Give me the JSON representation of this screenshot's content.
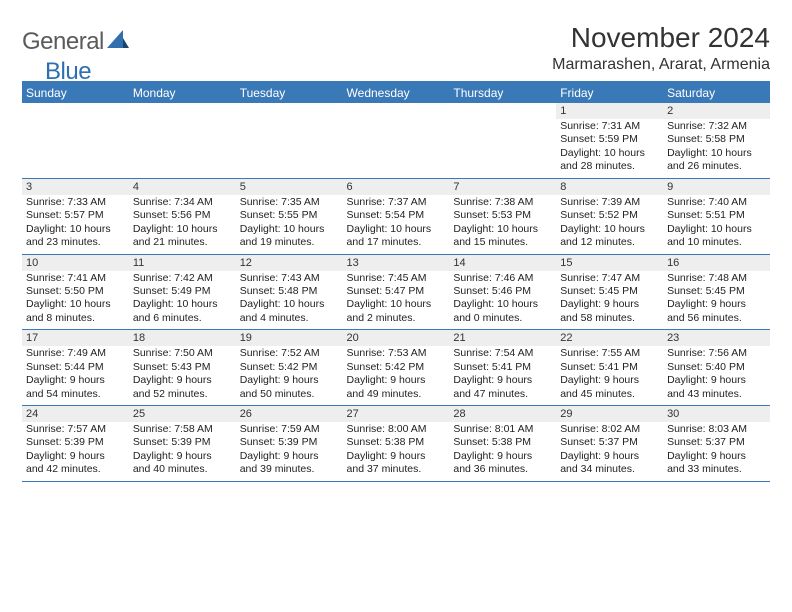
{
  "logo": {
    "general": "General",
    "blue": "Blue"
  },
  "header": {
    "title": "November 2024",
    "location": "Marmarashen, Ararat, Armenia"
  },
  "colors": {
    "header_bg": "#3a79b7",
    "header_text": "#ffffff",
    "daynum_bg": "#eeeeee",
    "rule": "#3a79b7",
    "logo_gray": "#5b5b5b",
    "logo_blue": "#2f6fb0"
  },
  "days_of_week": [
    "Sunday",
    "Monday",
    "Tuesday",
    "Wednesday",
    "Thursday",
    "Friday",
    "Saturday"
  ],
  "weeks": [
    [
      {
        "num": "",
        "lines": []
      },
      {
        "num": "",
        "lines": []
      },
      {
        "num": "",
        "lines": []
      },
      {
        "num": "",
        "lines": []
      },
      {
        "num": "",
        "lines": []
      },
      {
        "num": "1",
        "lines": [
          "Sunrise: 7:31 AM",
          "Sunset: 5:59 PM",
          "Daylight: 10 hours and 28 minutes."
        ]
      },
      {
        "num": "2",
        "lines": [
          "Sunrise: 7:32 AM",
          "Sunset: 5:58 PM",
          "Daylight: 10 hours and 26 minutes."
        ]
      }
    ],
    [
      {
        "num": "3",
        "lines": [
          "Sunrise: 7:33 AM",
          "Sunset: 5:57 PM",
          "Daylight: 10 hours and 23 minutes."
        ]
      },
      {
        "num": "4",
        "lines": [
          "Sunrise: 7:34 AM",
          "Sunset: 5:56 PM",
          "Daylight: 10 hours and 21 minutes."
        ]
      },
      {
        "num": "5",
        "lines": [
          "Sunrise: 7:35 AM",
          "Sunset: 5:55 PM",
          "Daylight: 10 hours and 19 minutes."
        ]
      },
      {
        "num": "6",
        "lines": [
          "Sunrise: 7:37 AM",
          "Sunset: 5:54 PM",
          "Daylight: 10 hours and 17 minutes."
        ]
      },
      {
        "num": "7",
        "lines": [
          "Sunrise: 7:38 AM",
          "Sunset: 5:53 PM",
          "Daylight: 10 hours and 15 minutes."
        ]
      },
      {
        "num": "8",
        "lines": [
          "Sunrise: 7:39 AM",
          "Sunset: 5:52 PM",
          "Daylight: 10 hours and 12 minutes."
        ]
      },
      {
        "num": "9",
        "lines": [
          "Sunrise: 7:40 AM",
          "Sunset: 5:51 PM",
          "Daylight: 10 hours and 10 minutes."
        ]
      }
    ],
    [
      {
        "num": "10",
        "lines": [
          "Sunrise: 7:41 AM",
          "Sunset: 5:50 PM",
          "Daylight: 10 hours and 8 minutes."
        ]
      },
      {
        "num": "11",
        "lines": [
          "Sunrise: 7:42 AM",
          "Sunset: 5:49 PM",
          "Daylight: 10 hours and 6 minutes."
        ]
      },
      {
        "num": "12",
        "lines": [
          "Sunrise: 7:43 AM",
          "Sunset: 5:48 PM",
          "Daylight: 10 hours and 4 minutes."
        ]
      },
      {
        "num": "13",
        "lines": [
          "Sunrise: 7:45 AM",
          "Sunset: 5:47 PM",
          "Daylight: 10 hours and 2 minutes."
        ]
      },
      {
        "num": "14",
        "lines": [
          "Sunrise: 7:46 AM",
          "Sunset: 5:46 PM",
          "Daylight: 10 hours and 0 minutes."
        ]
      },
      {
        "num": "15",
        "lines": [
          "Sunrise: 7:47 AM",
          "Sunset: 5:45 PM",
          "Daylight: 9 hours and 58 minutes."
        ]
      },
      {
        "num": "16",
        "lines": [
          "Sunrise: 7:48 AM",
          "Sunset: 5:45 PM",
          "Daylight: 9 hours and 56 minutes."
        ]
      }
    ],
    [
      {
        "num": "17",
        "lines": [
          "Sunrise: 7:49 AM",
          "Sunset: 5:44 PM",
          "Daylight: 9 hours and 54 minutes."
        ]
      },
      {
        "num": "18",
        "lines": [
          "Sunrise: 7:50 AM",
          "Sunset: 5:43 PM",
          "Daylight: 9 hours and 52 minutes."
        ]
      },
      {
        "num": "19",
        "lines": [
          "Sunrise: 7:52 AM",
          "Sunset: 5:42 PM",
          "Daylight: 9 hours and 50 minutes."
        ]
      },
      {
        "num": "20",
        "lines": [
          "Sunrise: 7:53 AM",
          "Sunset: 5:42 PM",
          "Daylight: 9 hours and 49 minutes."
        ]
      },
      {
        "num": "21",
        "lines": [
          "Sunrise: 7:54 AM",
          "Sunset: 5:41 PM",
          "Daylight: 9 hours and 47 minutes."
        ]
      },
      {
        "num": "22",
        "lines": [
          "Sunrise: 7:55 AM",
          "Sunset: 5:41 PM",
          "Daylight: 9 hours and 45 minutes."
        ]
      },
      {
        "num": "23",
        "lines": [
          "Sunrise: 7:56 AM",
          "Sunset: 5:40 PM",
          "Daylight: 9 hours and 43 minutes."
        ]
      }
    ],
    [
      {
        "num": "24",
        "lines": [
          "Sunrise: 7:57 AM",
          "Sunset: 5:39 PM",
          "Daylight: 9 hours and 42 minutes."
        ]
      },
      {
        "num": "25",
        "lines": [
          "Sunrise: 7:58 AM",
          "Sunset: 5:39 PM",
          "Daylight: 9 hours and 40 minutes."
        ]
      },
      {
        "num": "26",
        "lines": [
          "Sunrise: 7:59 AM",
          "Sunset: 5:39 PM",
          "Daylight: 9 hours and 39 minutes."
        ]
      },
      {
        "num": "27",
        "lines": [
          "Sunrise: 8:00 AM",
          "Sunset: 5:38 PM",
          "Daylight: 9 hours and 37 minutes."
        ]
      },
      {
        "num": "28",
        "lines": [
          "Sunrise: 8:01 AM",
          "Sunset: 5:38 PM",
          "Daylight: 9 hours and 36 minutes."
        ]
      },
      {
        "num": "29",
        "lines": [
          "Sunrise: 8:02 AM",
          "Sunset: 5:37 PM",
          "Daylight: 9 hours and 34 minutes."
        ]
      },
      {
        "num": "30",
        "lines": [
          "Sunrise: 8:03 AM",
          "Sunset: 5:37 PM",
          "Daylight: 9 hours and 33 minutes."
        ]
      }
    ]
  ]
}
